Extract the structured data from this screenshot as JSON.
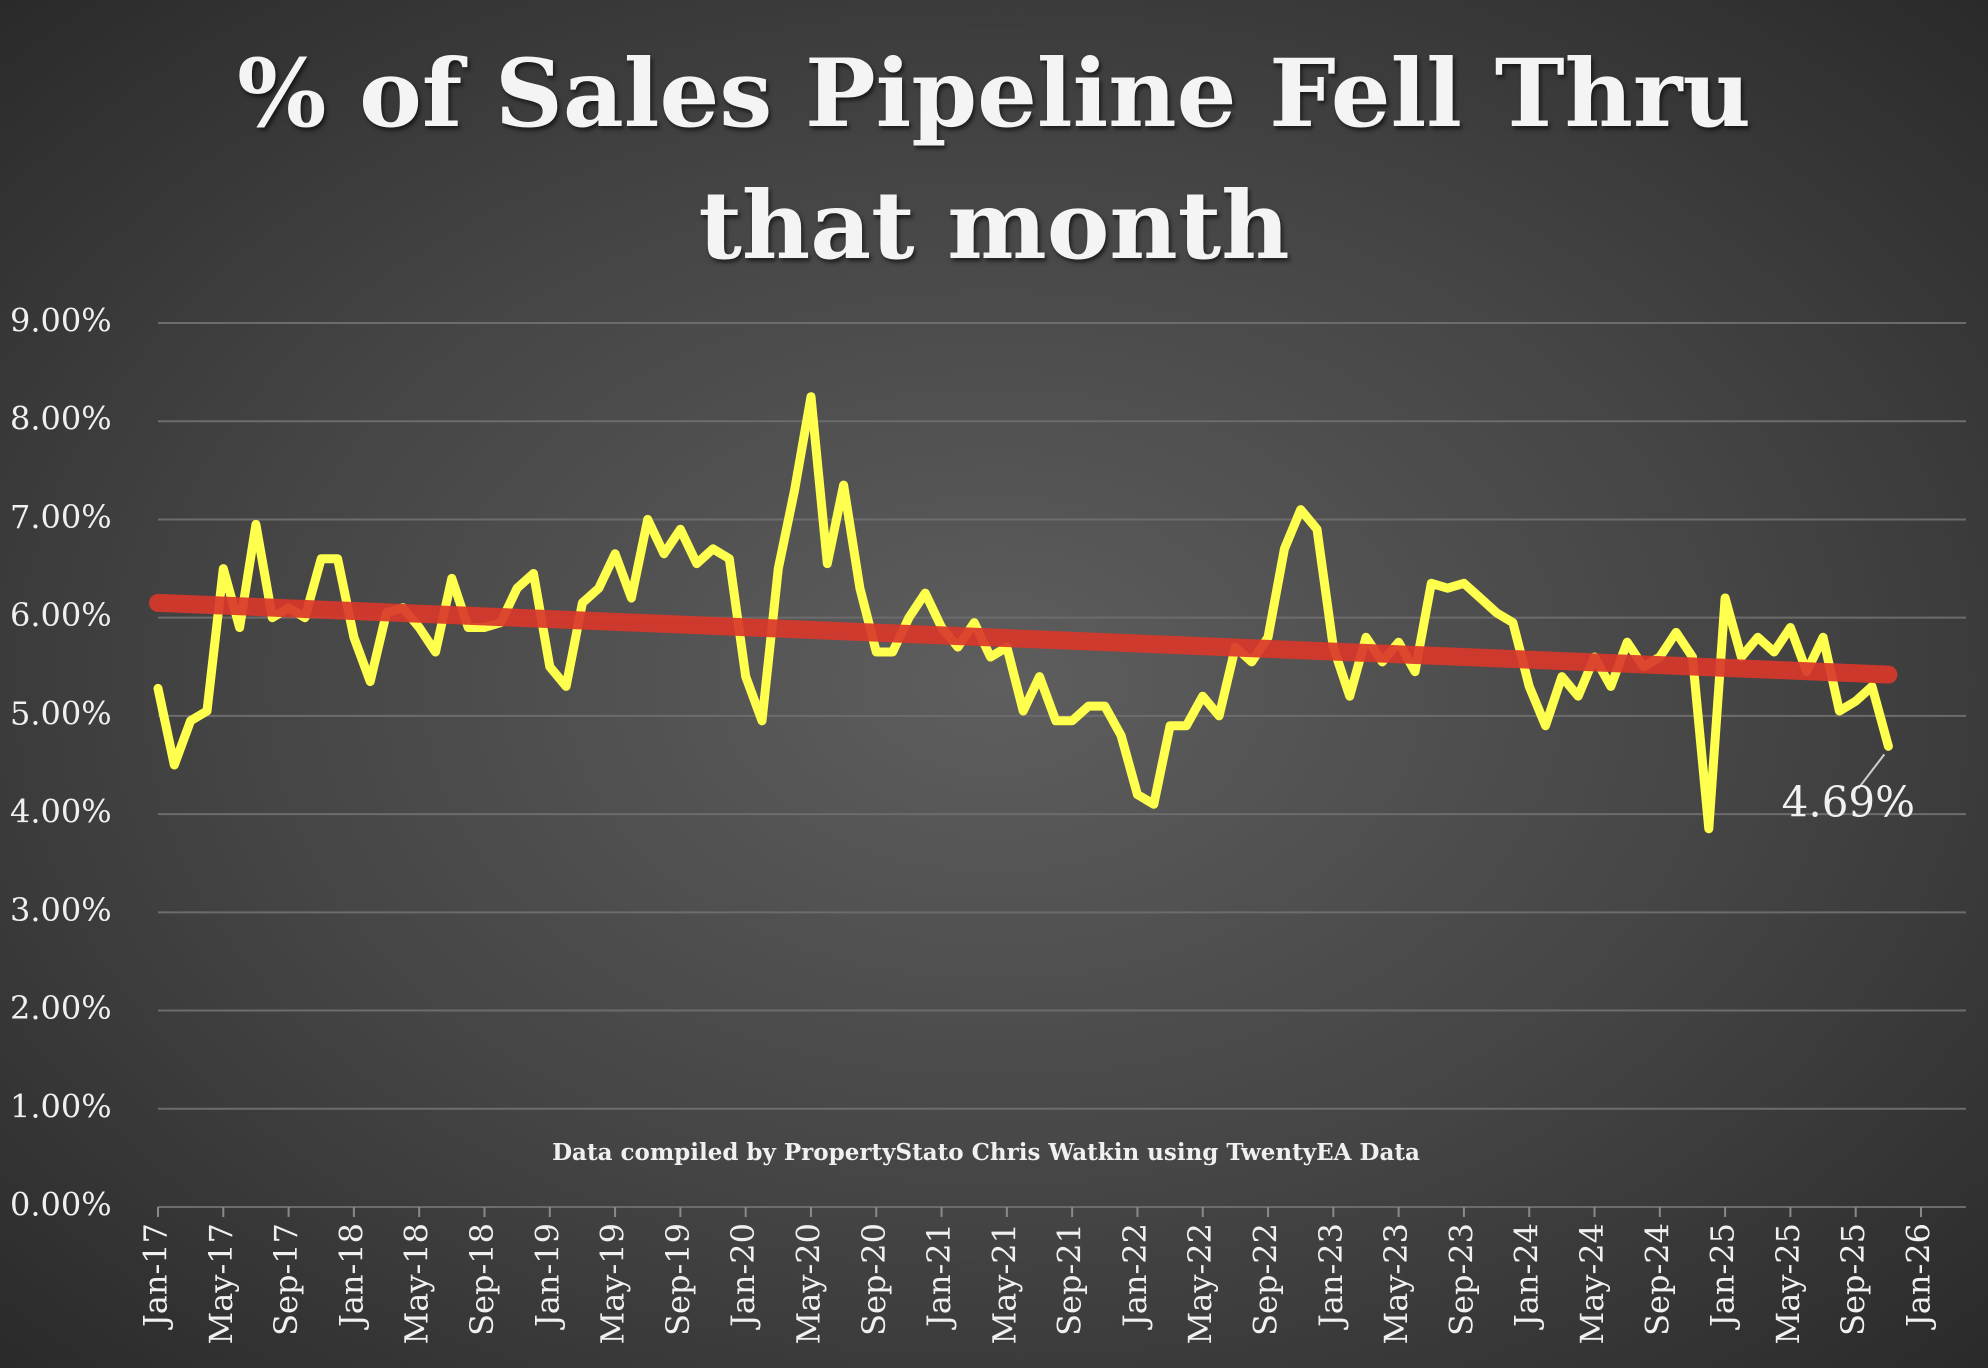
{
  "chart_data": {
    "type": "line",
    "title": "% of Sales Pipeline Fell Thru that month",
    "footnote": "Data compiled by PropertyStato Chris Watkin using TwentyEA Data",
    "x": [
      "2017-01",
      "2017-02",
      "2017-03",
      "2017-04",
      "2017-05",
      "2017-06",
      "2017-07",
      "2017-08",
      "2017-09",
      "2017-10",
      "2017-11",
      "2017-12",
      "2018-01",
      "2018-02",
      "2018-03",
      "2018-04",
      "2018-05",
      "2018-06",
      "2018-07",
      "2018-08",
      "2018-09",
      "2018-10",
      "2018-11",
      "2018-12",
      "2019-01",
      "2019-02",
      "2019-03",
      "2019-04",
      "2019-05",
      "2019-06",
      "2019-07",
      "2019-08",
      "2019-09",
      "2019-10",
      "2019-11",
      "2019-12",
      "2020-01",
      "2020-02",
      "2020-03",
      "2020-04",
      "2020-05",
      "2020-06",
      "2020-07",
      "2020-08",
      "2020-09",
      "2020-10",
      "2020-11",
      "2020-12",
      "2021-01",
      "2021-02",
      "2021-03",
      "2021-04",
      "2021-05",
      "2021-06",
      "2021-07",
      "2021-08",
      "2021-09",
      "2021-10",
      "2021-11",
      "2021-12",
      "2022-01",
      "2022-02",
      "2022-03",
      "2022-04",
      "2022-05",
      "2022-06",
      "2022-07",
      "2022-08",
      "2022-09",
      "2022-10",
      "2022-11",
      "2022-12",
      "2023-01",
      "2023-02",
      "2023-03",
      "2023-04",
      "2023-05",
      "2023-06",
      "2023-07",
      "2023-08",
      "2023-09",
      "2023-10",
      "2023-11",
      "2023-12",
      "2024-01",
      "2024-02",
      "2024-03",
      "2024-04",
      "2024-05",
      "2024-06",
      "2024-07",
      "2024-08",
      "2024-09",
      "2024-10",
      "2024-11",
      "2024-12",
      "2025-01",
      "2025-02",
      "2025-03",
      "2025-04",
      "2025-05",
      "2025-06",
      "2025-07",
      "2025-08",
      "2025-09",
      "2025-10",
      "2025-11"
    ],
    "series": [
      {
        "color": "#ffff4d",
        "values": [
          5.28,
          4.5,
          4.95,
          5.05,
          6.5,
          5.9,
          6.95,
          6.0,
          6.1,
          6.0,
          6.6,
          6.6,
          5.8,
          5.35,
          6.05,
          6.1,
          5.9,
          5.65,
          6.4,
          5.9,
          5.9,
          5.95,
          6.3,
          6.45,
          5.5,
          5.3,
          6.15,
          6.3,
          6.65,
          6.2,
          7.0,
          6.65,
          6.9,
          6.55,
          6.7,
          6.6,
          5.4,
          4.95,
          6.5,
          7.3,
          8.25,
          6.55,
          7.35,
          6.3,
          5.65,
          5.65,
          6.0,
          6.25,
          5.9,
          5.7,
          5.95,
          5.6,
          5.7,
          5.05,
          5.4,
          4.95,
          4.95,
          5.1,
          5.1,
          4.8,
          4.2,
          4.1,
          4.9,
          4.9,
          5.2,
          5.0,
          5.7,
          5.55,
          5.8,
          6.7,
          7.1,
          6.9,
          5.7,
          5.2,
          5.8,
          5.55,
          5.75,
          5.45,
          6.35,
          6.3,
          6.35,
          6.2,
          6.05,
          5.95,
          5.3,
          4.9,
          5.4,
          5.2,
          5.6,
          5.3,
          5.75,
          5.5,
          5.6,
          5.85,
          5.6,
          3.85,
          6.2,
          5.6,
          5.8,
          5.65,
          5.9,
          5.45,
          5.8,
          5.05,
          5.15,
          5.3,
          4.69
        ]
      }
    ],
    "trendline": {
      "color": "#d9372a",
      "x": [
        "2017-01",
        "2025-11"
      ],
      "values": [
        6.15,
        5.42
      ]
    },
    "annotation": {
      "text": "4.69%",
      "x": "2025-11",
      "y": 4.69
    },
    "xlim": [
      "2017-01",
      "2026-01"
    ],
    "xticks": [
      {
        "value": "2017-01",
        "label": "Jan-17"
      },
      {
        "value": "2017-05",
        "label": "May-17"
      },
      {
        "value": "2017-09",
        "label": "Sep-17"
      },
      {
        "value": "2018-01",
        "label": "Jan-18"
      },
      {
        "value": "2018-05",
        "label": "May-18"
      },
      {
        "value": "2018-09",
        "label": "Sep-18"
      },
      {
        "value": "2019-01",
        "label": "Jan-19"
      },
      {
        "value": "2019-05",
        "label": "May-19"
      },
      {
        "value": "2019-09",
        "label": "Sep-19"
      },
      {
        "value": "2020-01",
        "label": "Jan-20"
      },
      {
        "value": "2020-05",
        "label": "May-20"
      },
      {
        "value": "2020-09",
        "label": "Sep-20"
      },
      {
        "value": "2021-01",
        "label": "Jan-21"
      },
      {
        "value": "2021-05",
        "label": "May-21"
      },
      {
        "value": "2021-09",
        "label": "Sep-21"
      },
      {
        "value": "2022-01",
        "label": "Jan-22"
      },
      {
        "value": "2022-05",
        "label": "May-22"
      },
      {
        "value": "2022-09",
        "label": "Sep-22"
      },
      {
        "value": "2023-01",
        "label": "Jan-23"
      },
      {
        "value": "2023-05",
        "label": "May-23"
      },
      {
        "value": "2023-09",
        "label": "Sep-23"
      },
      {
        "value": "2024-01",
        "label": "Jan-24"
      },
      {
        "value": "2024-05",
        "label": "May-24"
      },
      {
        "value": "2024-09",
        "label": "Sep-24"
      },
      {
        "value": "2025-01",
        "label": "Jan-25"
      },
      {
        "value": "2025-05",
        "label": "May-25"
      },
      {
        "value": "2025-09",
        "label": "Sep-25"
      },
      {
        "value": "2026-01",
        "label": "Jan-26"
      }
    ],
    "ylim": [
      0,
      9
    ],
    "yticks": [
      {
        "value": 0,
        "label": "0.00%"
      },
      {
        "value": 1,
        "label": "1.00%"
      },
      {
        "value": 2,
        "label": "2.00%"
      },
      {
        "value": 3,
        "label": "3.00%"
      },
      {
        "value": 4,
        "label": "4.00%"
      },
      {
        "value": 5,
        "label": "5.00%"
      },
      {
        "value": 6,
        "label": "6.00%"
      },
      {
        "value": 7,
        "label": "7.00%"
      },
      {
        "value": 8,
        "label": "8.00%"
      },
      {
        "value": 9,
        "label": "9.00%"
      }
    ],
    "grid": true
  }
}
